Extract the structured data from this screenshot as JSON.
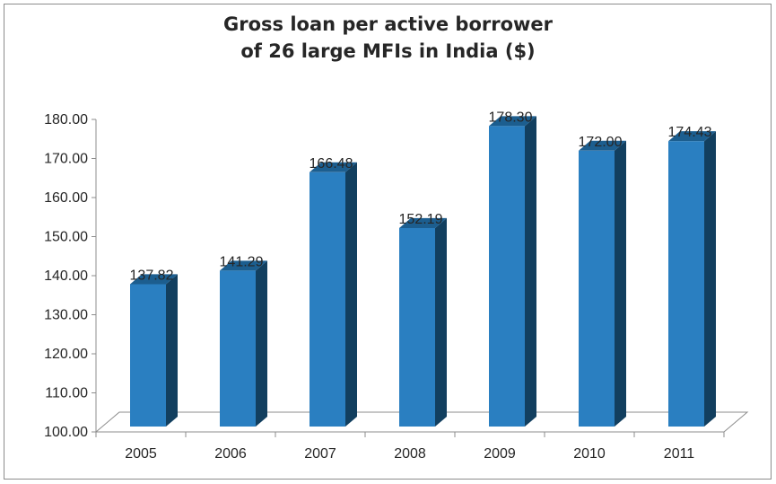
{
  "chart_data": {
    "type": "bar",
    "title": [
      "Gross loan per active borrower",
      "of 26 large MFIs in India ($)"
    ],
    "categories": [
      "2005",
      "2006",
      "2007",
      "2008",
      "2009",
      "2010",
      "2011"
    ],
    "values": [
      137.82,
      141.29,
      166.48,
      152.19,
      178.3,
      172.0,
      174.43
    ],
    "value_labels": [
      "137.82",
      "141.29",
      "166.48",
      "152.19",
      "178.30",
      "172.00",
      "174.43"
    ],
    "y_ticks": [
      "100.00",
      "110.00",
      "120.00",
      "130.00",
      "140.00",
      "150.00",
      "160.00",
      "170.00",
      "180.00"
    ],
    "ylim": [
      100,
      180
    ],
    "xlabel": "",
    "ylabel": "",
    "grid": false,
    "legend": "none",
    "style": "3d-column",
    "colors": {
      "bar_front": "#2a7fc1",
      "bar_side": "#123f5f",
      "bar_top": "#1c5e8f",
      "axis": "#8c8c8c"
    }
  }
}
